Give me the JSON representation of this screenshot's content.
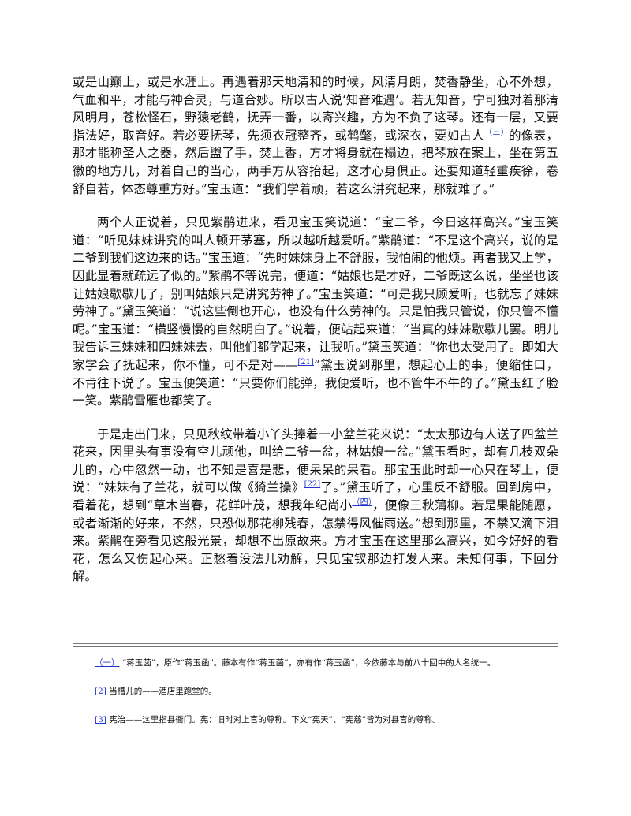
{
  "body": {
    "paragraphs": [
      {
        "parts": [
          "或是山巅上，或是水涯上。再遇着那天地清和的时候，风清月朗，焚香静坐，心不外想，气血和平，才能与神合灵，与道合妙。所以古人说‘知音难遇’。若无知音，宁可独对着那清风明月，苍松怪石，野猿老鹤，抚弄一番，以寄兴趣，方为不负了这琴。还有一层，又要指法好，取音好。若必要抚琴，先须衣冠整齐，或鹤氅，或深衣，要如古人",
          {
            "link": "（三）"
          },
          "的像表，那才能称圣人之器，然后盥了手，焚上香，方才将身就在榻边，把琴放在案上，坐在第五徽的地方儿，对着自己的当心，两手方从容抬起，这才心身俱正。还要知道轻重疾徐，卷舒自若，体态尊重方好。”宝玉道：“我们学着顽，若这么讲究起来，那就难了。”"
        ]
      },
      {
        "parts": [
          "两个人正说着，只见紫鹃进来，看见宝玉笑说道：“宝二爷，今日这样高兴。”宝玉笑道：“听见妹妹讲究的叫人顿开茅塞，所以越听越爱听。”紫鹃道：“不是这个高兴，说的是二爷到我们这边来的话。”宝玉道：“先时妹妹身上不舒服，我怕闹的他烦。再者我又上学，因此显着就疏远了似的。”紫鹃不等说完，便道：“姑娘也是才好，二爷既这么说，坐坐也该让姑娘歇歇儿了，别叫姑娘只是讲究劳神了。”宝玉笑道：“可是我只顾爱听，也就忘了妹妹劳神了。”黛玉笑道：“说这些倒也开心，也没有什么劳神的。只是怕我只管说，你只管不懂呢。”宝玉道：“横竖慢慢的自然明白了。”说着，便站起来道：“当真的妹妹歇歇儿罢。明儿我告诉三妹妹和四妹妹去，叫他们都学起来，让我听。”黛玉笑道：“你也太受用了。即如大家学会了抚起来，你不懂，可不是对——",
          {
            "link": "[21]"
          },
          "”黛玉说到那里，想起心上的事，便缩住口，不肯往下说了。宝玉便笑道：“只要你们能弹，我便爱听，也不管牛不牛的了。”黛玉红了脸一笑。紫鹃雪雁也都笑了。"
        ]
      },
      {
        "parts": [
          "于是走出门来，只见秋纹带着小丫头捧着一小盆兰花来说：“太太那边有人送了四盆兰花来，因里头有事没有空儿顽他，叫给二爷一盆，林姑娘一盆。”黛玉看时，却有几枝双朵儿的，心中忽然一动，也不知是喜是悲，便呆呆的呆看。那宝玉此时却一心只在琴上，便说：“妹妹有了兰花，就可以做《猗兰操》",
          {
            "link": "[22]"
          },
          "了。”黛玉听了，心里反不舒服。回到房中，看着花，想到“草木当春，花鲜叶茂，想我年纪尚小",
          {
            "link": "（四）"
          },
          "，便像三秋蒲柳。若是果能随愿，或者渐渐的好来，不然，只恐似那花柳残春，怎禁得风催雨送。”想到那里，不禁又滴下泪来。紫鹃在旁看见这般光景，却想不出原故来。方才宝玉在这里那么高兴，如今好好的看花，怎么又伤起心来。正愁着没法儿劝解，只见宝钗那边打发人来。未知何事，下回分解。"
        ]
      }
    ]
  },
  "notes": [
    {
      "ref": "（一）",
      "text": " “蒋玉菡”，原作“蒋玉函”。藤本有作“蒋玉菡”，亦有作“蒋玉函”，今依藤本与前八十回中的人名统一。"
    },
    {
      "ref": "[2]",
      "text": " 当槽儿的——酒店里跑堂的。"
    },
    {
      "ref": "[3]",
      "text": " 宪治——这里指县衙门。宪：旧时对上官的尊称。下文“宪天”、“宪慈”皆为对县官的尊称。"
    }
  ]
}
